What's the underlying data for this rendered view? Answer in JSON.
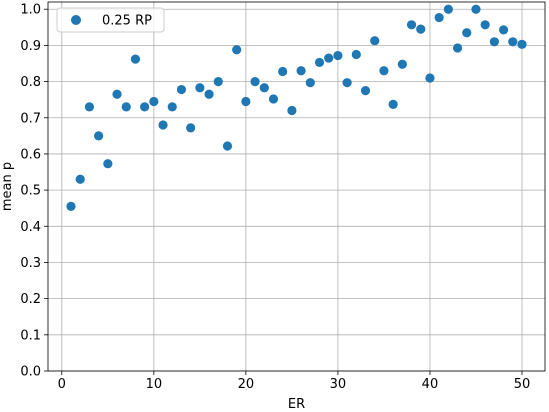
{
  "chart_data": {
    "type": "scatter",
    "xlabel": "ER",
    "ylabel": "mean p",
    "xlim": [
      -1.5,
      52.5
    ],
    "ylim": [
      0.0,
      1.02
    ],
    "xticks": [
      0,
      10,
      20,
      30,
      40,
      50
    ],
    "yticks": [
      0.0,
      0.1,
      0.2,
      0.3,
      0.4,
      0.5,
      0.6,
      0.7,
      0.8,
      0.9,
      1.0
    ],
    "xtick_labels": [
      "0",
      "10",
      "20",
      "30",
      "40",
      "50"
    ],
    "ytick_labels": [
      "0.0",
      "0.1",
      "0.2",
      "0.3",
      "0.4",
      "0.5",
      "0.6",
      "0.7",
      "0.8",
      "0.9",
      "1.0"
    ],
    "grid": true,
    "legend_position": "top-left",
    "series": [
      {
        "name": "0.25 RP",
        "color": "#1f77b4",
        "x": [
          1,
          2,
          3,
          4,
          5,
          6,
          7,
          8,
          9,
          10,
          11,
          12,
          13,
          14,
          15,
          16,
          17,
          18,
          19,
          20,
          21,
          22,
          23,
          24,
          25,
          26,
          27,
          28,
          29,
          30,
          31,
          32,
          33,
          34,
          35,
          36,
          37,
          38,
          39,
          40,
          41,
          42,
          43,
          44,
          45,
          46,
          47,
          48,
          49,
          50
        ],
        "y": [
          0.455,
          0.53,
          0.73,
          0.65,
          0.573,
          0.765,
          0.73,
          0.862,
          0.73,
          0.745,
          0.68,
          0.73,
          0.778,
          0.672,
          0.783,
          0.765,
          0.8,
          0.622,
          0.888,
          0.745,
          0.8,
          0.783,
          0.752,
          0.828,
          0.72,
          0.83,
          0.797,
          0.853,
          0.865,
          0.872,
          0.797,
          0.875,
          0.775,
          0.913,
          0.83,
          0.737,
          0.848,
          0.957,
          0.945,
          0.81,
          0.977,
          1.0,
          0.893,
          0.935,
          1.0,
          0.957,
          0.91,
          0.943,
          0.91,
          0.903
        ]
      }
    ]
  }
}
